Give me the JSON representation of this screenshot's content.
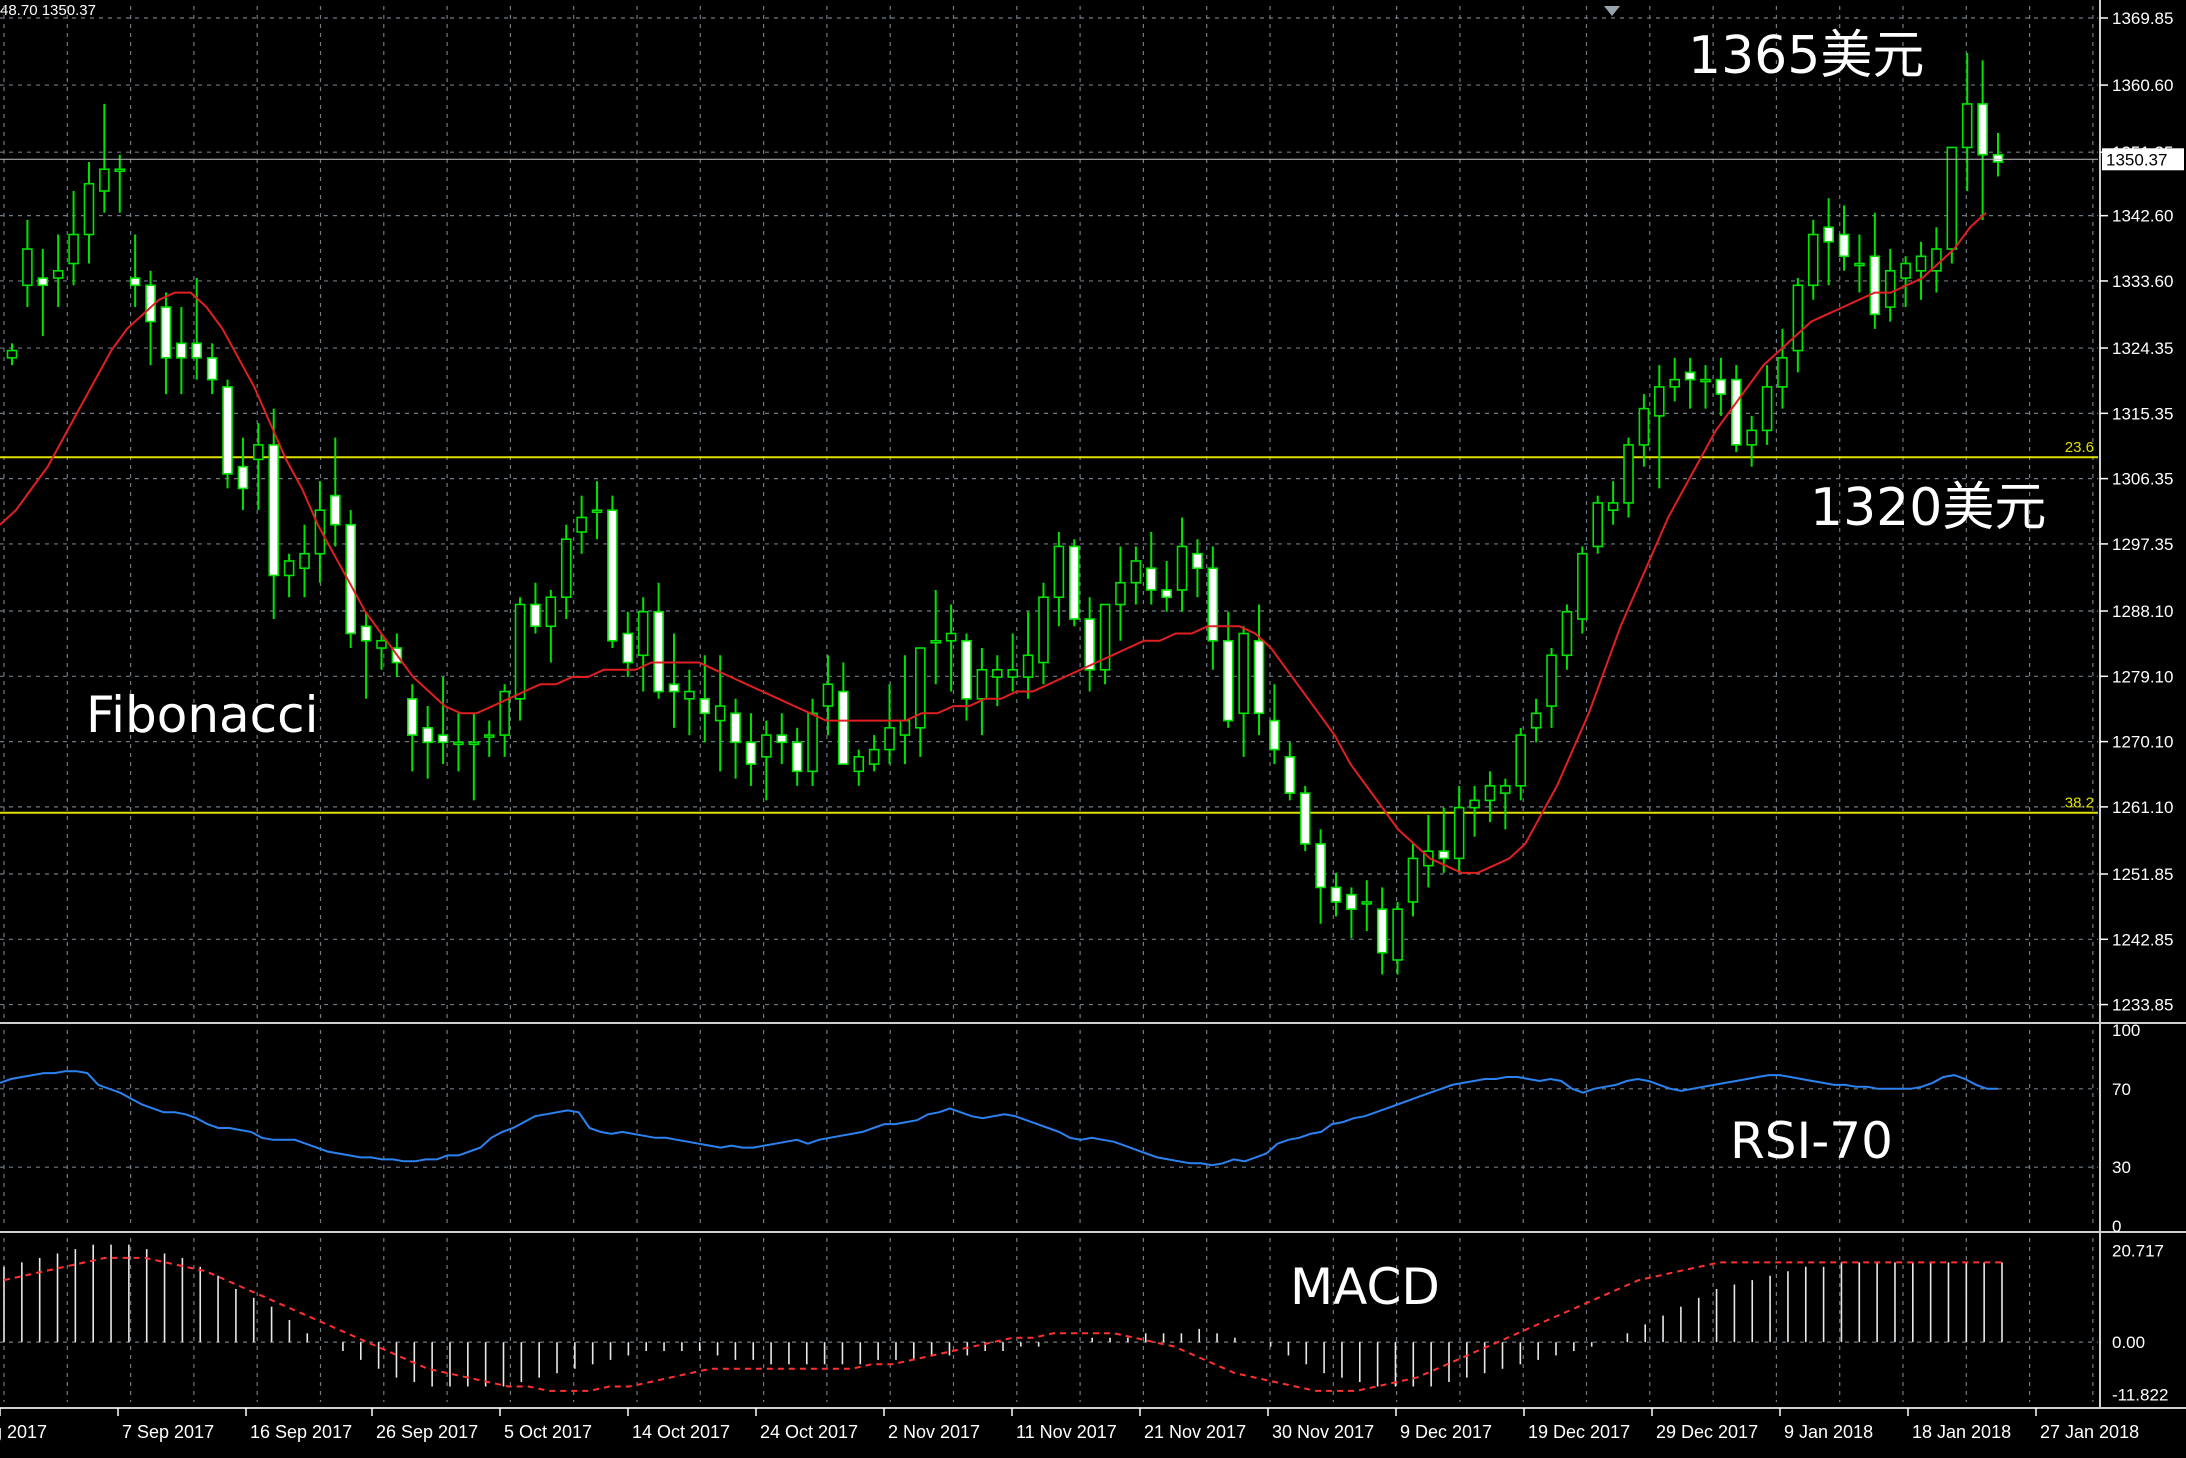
{
  "header": {
    "ohlc_text": "48.70 1350.37"
  },
  "annotations": {
    "price_high": "1365美元",
    "price_mid": "1320美元",
    "fib_label": "Fibonacci",
    "rsi_label": "RSI-70",
    "macd_label": "MACD"
  },
  "colors": {
    "background": "#000000",
    "grid": "#6f7a84",
    "axis": "#ffffff",
    "bull": "#00e400",
    "bear_fill": "#ffffff",
    "bear_border": "#00e400",
    "ma": "#e02020",
    "fib": "#e0e000",
    "rsi": "#2b82f0",
    "macd_hist": "#e8e8e8",
    "macd_signal": "#ff3030",
    "current_price": "#ffffff"
  },
  "chart_data": {
    "type": "candlestick",
    "price_axis": {
      "ticks": [
        "1369.85",
        "1360.60",
        "1351.35",
        "1342.60",
        "1333.60",
        "1324.35",
        "1315.35",
        "1306.35",
        "1297.35",
        "1288.10",
        "1279.10",
        "1270.10",
        "1261.10",
        "1251.85",
        "1242.85",
        "1233.85"
      ],
      "range": [
        1232.0,
        1371.5
      ],
      "current_price": "1350.37"
    },
    "fib_levels": [
      {
        "label": "23.6",
        "price": 1309.3
      },
      {
        "label": "38.2",
        "price": 1260.3
      }
    ],
    "date_labels": [
      "g 2017",
      "7 Sep 2017",
      "16 Sep 2017",
      "26 Sep 2017",
      "5 Oct 2017",
      "14 Oct 2017",
      "24 Oct 2017",
      "2 Nov 2017",
      "11 Nov 2017",
      "21 Nov 2017",
      "30 Nov 2017",
      "9 Dec 2017",
      "19 Dec 2017",
      "29 Dec 2017",
      "9 Jan 2018",
      "18 Jan 2018",
      "27 Jan 2018"
    ],
    "candles": [
      [
        1323,
        1325,
        1322,
        1324
      ],
      [
        1333,
        1342,
        1330,
        1338
      ],
      [
        1334,
        1338,
        1326,
        1333
      ],
      [
        1334,
        1340,
        1330,
        1335
      ],
      [
        1336,
        1346,
        1333,
        1340
      ],
      [
        1340,
        1350,
        1336,
        1347
      ],
      [
        1346,
        1358,
        1343,
        1349
      ],
      [
        1349,
        1351,
        1343,
        1349
      ],
      [
        1334,
        1340,
        1330,
        1333
      ],
      [
        1333,
        1335,
        1322,
        1328
      ],
      [
        1330,
        1332,
        1318,
        1323
      ],
      [
        1325,
        1330,
        1318,
        1323
      ],
      [
        1325,
        1334,
        1320,
        1323
      ],
      [
        1323,
        1325,
        1318,
        1320
      ],
      [
        1319,
        1320,
        1305,
        1307
      ],
      [
        1308,
        1312,
        1302,
        1305
      ],
      [
        1309,
        1314,
        1302,
        1311
      ],
      [
        1311,
        1316,
        1287,
        1293
      ],
      [
        1293,
        1296,
        1290,
        1295
      ],
      [
        1294,
        1300,
        1290,
        1296
      ],
      [
        1296,
        1306,
        1292,
        1302
      ],
      [
        1304,
        1312,
        1297,
        1300
      ],
      [
        1300,
        1302,
        1283,
        1285
      ],
      [
        1286,
        1288,
        1276,
        1284
      ],
      [
        1283,
        1285,
        1280,
        1284
      ],
      [
        1283,
        1285,
        1279,
        1281
      ],
      [
        1276,
        1278,
        1266,
        1271
      ],
      [
        1272,
        1275,
        1265,
        1270
      ],
      [
        1271,
        1279,
        1267,
        1270
      ],
      [
        1270,
        1274,
        1266,
        1270
      ],
      [
        1270,
        1274,
        1262,
        1270
      ],
      [
        1271,
        1273,
        1268,
        1271
      ],
      [
        1271,
        1278,
        1268,
        1277
      ],
      [
        1276,
        1290,
        1273,
        1289
      ],
      [
        1289,
        1292,
        1285,
        1286
      ],
      [
        1286,
        1291,
        1281,
        1290
      ],
      [
        1290,
        1300,
        1287,
        1298
      ],
      [
        1299,
        1304,
        1296,
        1301
      ],
      [
        1302,
        1306,
        1298,
        1302
      ],
      [
        1302,
        1304,
        1283,
        1284
      ],
      [
        1285,
        1288,
        1279,
        1281
      ],
      [
        1282,
        1290,
        1277,
        1288
      ],
      [
        1288,
        1292,
        1276,
        1277
      ],
      [
        1278,
        1285,
        1272,
        1277
      ],
      [
        1276,
        1280,
        1271,
        1277
      ],
      [
        1276,
        1282,
        1270,
        1274
      ],
      [
        1273,
        1282,
        1266,
        1275
      ],
      [
        1274,
        1276,
        1265,
        1270
      ],
      [
        1270,
        1274,
        1264,
        1267
      ],
      [
        1268,
        1273,
        1262,
        1271
      ],
      [
        1271,
        1274,
        1267,
        1270
      ],
      [
        1270,
        1272,
        1264,
        1266
      ],
      [
        1266,
        1276,
        1264,
        1274
      ],
      [
        1275,
        1282,
        1271,
        1278
      ],
      [
        1277,
        1281,
        1267,
        1267
      ],
      [
        1266,
        1269,
        1264,
        1268
      ],
      [
        1267,
        1271,
        1266,
        1269
      ],
      [
        1269,
        1278,
        1267,
        1272
      ],
      [
        1271,
        1282,
        1267,
        1273
      ],
      [
        1272,
        1283,
        1268,
        1283
      ],
      [
        1284,
        1291,
        1278,
        1284
      ],
      [
        1284,
        1289,
        1277,
        1285
      ],
      [
        1284,
        1285,
        1273,
        1276
      ],
      [
        1276,
        1283,
        1271,
        1280
      ],
      [
        1279,
        1282,
        1275,
        1280
      ],
      [
        1279,
        1285,
        1277,
        1280
      ],
      [
        1279,
        1288,
        1276,
        1282
      ],
      [
        1281,
        1292,
        1278,
        1290
      ],
      [
        1290,
        1299,
        1286,
        1297
      ],
      [
        1297,
        1298,
        1286,
        1287
      ],
      [
        1287,
        1290,
        1277,
        1280
      ],
      [
        1280,
        1289,
        1278,
        1289
      ],
      [
        1289,
        1297,
        1284,
        1292
      ],
      [
        1292,
        1297,
        1289,
        1295
      ],
      [
        1294,
        1299,
        1289,
        1291
      ],
      [
        1291,
        1295,
        1288,
        1290
      ],
      [
        1291,
        1301,
        1288,
        1297
      ],
      [
        1296,
        1298,
        1290,
        1294
      ],
      [
        1294,
        1297,
        1280,
        1284
      ],
      [
        1284,
        1288,
        1272,
        1273
      ],
      [
        1274,
        1286,
        1268,
        1285
      ],
      [
        1284,
        1289,
        1271,
        1274
      ],
      [
        1273,
        1278,
        1267,
        1269
      ],
      [
        1268,
        1270,
        1262,
        1263
      ],
      [
        1263,
        1264,
        1255,
        1256
      ],
      [
        1256,
        1258,
        1245,
        1250
      ],
      [
        1250,
        1252,
        1246,
        1248
      ],
      [
        1249,
        1250,
        1243,
        1247
      ],
      [
        1248,
        1251,
        1244,
        1248
      ],
      [
        1247,
        1250,
        1238,
        1241
      ],
      [
        1240,
        1248,
        1238,
        1247
      ],
      [
        1248,
        1256,
        1246,
        1254
      ],
      [
        1253,
        1260,
        1250,
        1255
      ],
      [
        1255,
        1261,
        1252,
        1254
      ],
      [
        1254,
        1264,
        1252,
        1261
      ],
      [
        1261,
        1264,
        1257,
        1262
      ],
      [
        1262,
        1266,
        1259,
        1264
      ],
      [
        1263,
        1265,
        1258,
        1264
      ],
      [
        1264,
        1272,
        1262,
        1271
      ],
      [
        1272,
        1276,
        1270,
        1274
      ],
      [
        1275,
        1283,
        1272,
        1282
      ],
      [
        1282,
        1289,
        1280,
        1288
      ],
      [
        1287,
        1297,
        1285,
        1296
      ],
      [
        1297,
        1304,
        1296,
        1303
      ],
      [
        1302,
        1306,
        1300,
        1303
      ],
      [
        1303,
        1312,
        1301,
        1311
      ],
      [
        1311,
        1318,
        1308,
        1316
      ],
      [
        1315,
        1322,
        1305,
        1319
      ],
      [
        1319,
        1323,
        1317,
        1320
      ],
      [
        1321,
        1323,
        1316,
        1320
      ],
      [
        1320,
        1322,
        1316,
        1320
      ],
      [
        1320,
        1323,
        1315,
        1318
      ],
      [
        1320,
        1322,
        1310,
        1311
      ],
      [
        1311,
        1315,
        1308,
        1313
      ],
      [
        1313,
        1322,
        1311,
        1319
      ],
      [
        1319,
        1327,
        1316,
        1323
      ],
      [
        1324,
        1334,
        1321,
        1333
      ],
      [
        1333,
        1342,
        1331,
        1340
      ],
      [
        1341,
        1345,
        1333,
        1339
      ],
      [
        1340,
        1344,
        1335,
        1337
      ],
      [
        1336,
        1340,
        1332,
        1336
      ],
      [
        1337,
        1343,
        1327,
        1329
      ],
      [
        1330,
        1338,
        1328,
        1335
      ],
      [
        1334,
        1337,
        1330,
        1336
      ],
      [
        1335,
        1339,
        1331,
        1337
      ],
      [
        1335,
        1341,
        1332,
        1338
      ],
      [
        1338,
        1352,
        1336,
        1352
      ],
      [
        1352,
        1365,
        1346,
        1358
      ],
      [
        1358,
        1364,
        1342,
        1351
      ],
      [
        1351,
        1354,
        1348,
        1350
      ]
    ],
    "ma_values": [
      1300,
      1302,
      1305,
      1308,
      1312,
      1316,
      1320,
      1324,
      1327,
      1329,
      1331,
      1332,
      1332,
      1330,
      1327,
      1323,
      1319,
      1314,
      1309,
      1305,
      1300,
      1296,
      1292,
      1288,
      1285,
      1282,
      1279,
      1277,
      1275,
      1274,
      1274,
      1275,
      1276,
      1277,
      1278,
      1278,
      1279,
      1279,
      1280,
      1280,
      1280,
      1281,
      1281,
      1281,
      1281,
      1280,
      1279,
      1278,
      1277,
      1276,
      1275,
      1274,
      1273,
      1273,
      1273,
      1273,
      1273,
      1273,
      1274,
      1274,
      1275,
      1275,
      1276,
      1276,
      1277,
      1277,
      1278,
      1279,
      1280,
      1281,
      1282,
      1283,
      1284,
      1284,
      1285,
      1285,
      1286,
      1286,
      1286,
      1285,
      1283,
      1280,
      1277,
      1274,
      1271,
      1267,
      1264,
      1261,
      1258,
      1256,
      1254,
      1253,
      1252,
      1252,
      1253,
      1254,
      1256,
      1260,
      1264,
      1269,
      1274,
      1280,
      1286,
      1291,
      1296,
      1301,
      1305,
      1309,
      1313,
      1316,
      1319,
      1322,
      1324,
      1326,
      1328,
      1329,
      1330,
      1331,
      1332,
      1332,
      1333,
      1334,
      1336,
      1338,
      1341,
      1343
    ],
    "rsi": {
      "ticks": [
        "100",
        "70",
        "30",
        "0"
      ],
      "range": [
        0,
        100
      ],
      "values": [
        73,
        75,
        76,
        77,
        78,
        78,
        79,
        79,
        78,
        72,
        70,
        68,
        65,
        62,
        60,
        58,
        58,
        57,
        55,
        52,
        50,
        50,
        49,
        48,
        45,
        44,
        44,
        44,
        42,
        40,
        38,
        37,
        36,
        35,
        35,
        34,
        34,
        33,
        33,
        34,
        34,
        36,
        36,
        38,
        40,
        45,
        48,
        50,
        53,
        56,
        57,
        58,
        59,
        58,
        50,
        48,
        47,
        48,
        47,
        46,
        45,
        45,
        44,
        43,
        42,
        41,
        40,
        41,
        40,
        40,
        41,
        42,
        43,
        44,
        42,
        44,
        45,
        46,
        47,
        48,
        50,
        52,
        52,
        53,
        54,
        57,
        58,
        60,
        58,
        56,
        55,
        56,
        57,
        56,
        54,
        52,
        50,
        48,
        45,
        44,
        45,
        44,
        43,
        41,
        39,
        37,
        35,
        34,
        33,
        32,
        32,
        31,
        32,
        34,
        33,
        35,
        37,
        42,
        44,
        45,
        47,
        48,
        52,
        53,
        55,
        56,
        58,
        60,
        62,
        64,
        66,
        68,
        70,
        72,
        73,
        74,
        75,
        75,
        76,
        76,
        75,
        74,
        75,
        74,
        70,
        68,
        70,
        71,
        72,
        74,
        75,
        74,
        72,
        70,
        69,
        70,
        71,
        72,
        73,
        74,
        75,
        76,
        77,
        77,
        76,
        75,
        74,
        73,
        72,
        72,
        71,
        71,
        70,
        70,
        70,
        70,
        71,
        73,
        76,
        77,
        75,
        72,
        70,
        70
      ]
    },
    "macd": {
      "ticks": [
        "20.717",
        "0.00",
        "-11.822"
      ],
      "range": [
        -13.5,
        23.5
      ],
      "histogram": [
        17,
        18,
        19,
        20,
        21,
        22,
        22,
        22,
        21,
        20,
        19,
        17,
        15,
        12,
        10,
        8,
        5,
        2,
        0,
        -2,
        -4,
        -6,
        -8,
        -9,
        -10,
        -10,
        -10,
        -10,
        -10,
        -9,
        -8,
        -7,
        -6,
        -5,
        -4,
        -3,
        -2,
        -2,
        -2,
        -2,
        -3,
        -4,
        -4,
        -5,
        -5,
        -5,
        -5,
        -5,
        -5,
        -4,
        -4,
        -4,
        -3,
        -3,
        -3,
        -2,
        -2,
        -1,
        -1,
        0,
        0,
        1,
        1,
        1,
        2,
        2,
        2,
        3,
        2,
        1,
        0,
        -1,
        -3,
        -5,
        -7,
        -8,
        -9,
        -10,
        -10,
        -10,
        -10,
        -9,
        -8,
        -7,
        -6,
        -5,
        -4,
        -3,
        -2,
        -1,
        0,
        2,
        4,
        6,
        8,
        10,
        12,
        13,
        14,
        15,
        16,
        17,
        17,
        18,
        18,
        18,
        18,
        18,
        18,
        18,
        18,
        18,
        18
      ],
      "signal": [
        14,
        15,
        16,
        17,
        18,
        19,
        19,
        19,
        18,
        17,
        16,
        14,
        12,
        10,
        8,
        6,
        4,
        2,
        0,
        -2,
        -4,
        -6,
        -7,
        -8,
        -9,
        -10,
        -10,
        -11,
        -11,
        -11,
        -10,
        -10,
        -9,
        -8,
        -7,
        -6,
        -6,
        -6,
        -6,
        -6,
        -6,
        -6,
        -6,
        -5,
        -5,
        -4,
        -3,
        -2,
        -1,
        0,
        1,
        1,
        2,
        2,
        2,
        2,
        1,
        0,
        -1,
        -3,
        -5,
        -7,
        -8,
        -9,
        -10,
        -11,
        -11,
        -11,
        -10,
        -9,
        -8,
        -6,
        -4,
        -2,
        0,
        2,
        4,
        6,
        8,
        10,
        12,
        14,
        15,
        16,
        17,
        18,
        18,
        18,
        18,
        18,
        18,
        18,
        18,
        18,
        18,
        18,
        18,
        18,
        18,
        18
      ]
    }
  }
}
